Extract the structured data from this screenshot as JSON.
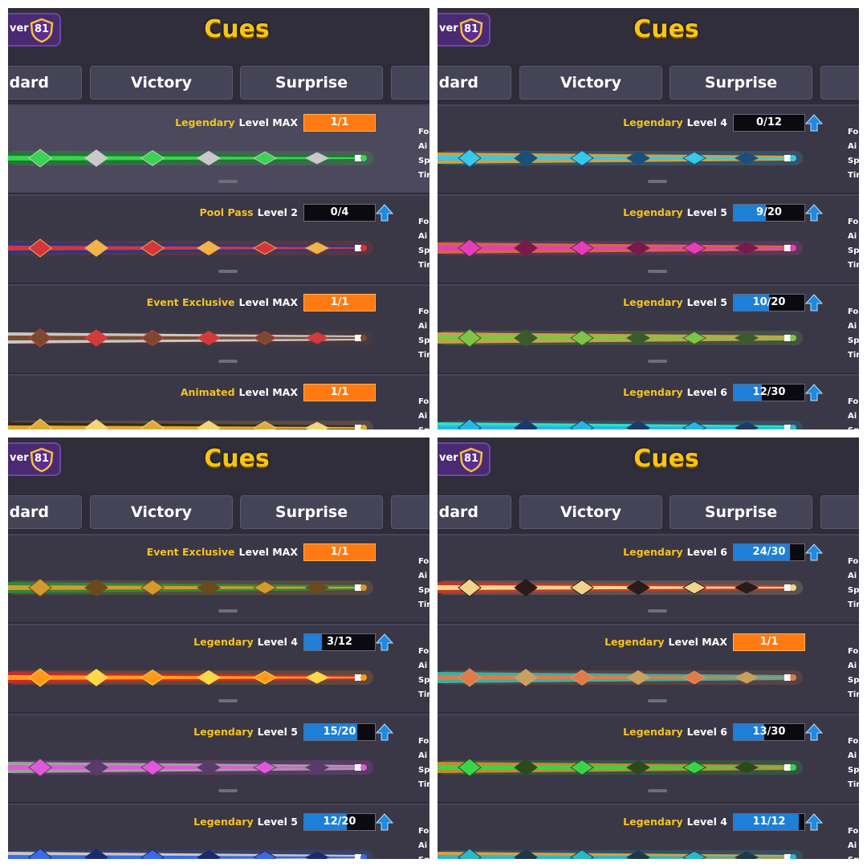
{
  "header": {
    "title": "Cues",
    "profile_label": "ver",
    "level_badge": "81"
  },
  "tabs": [
    "dard",
    "Victory",
    "Surprise"
  ],
  "stat_labels": [
    "Fo",
    "Ai",
    "Sp",
    "Tir"
  ],
  "colors": {
    "rarity": "#f5c320",
    "max_bar": "#ff7a12",
    "progress_fill": "#1e7fd8",
    "background": "#2e2c38"
  },
  "panels": [
    {
      "cards": [
        {
          "rarity": "Legendary",
          "level": "Level MAX",
          "progress": "1/1",
          "max": true,
          "fraction": 1,
          "selected": true,
          "cue_colors": [
            "#39d451",
            "#1a7d2c",
            "#c9c9c9"
          ],
          "cue_icon": "ring-cue-icon"
        },
        {
          "rarity": "Pool Pass",
          "level": "Level 2",
          "progress": "0/4",
          "max": false,
          "fraction": 0,
          "cue_colors": [
            "#d4363a",
            "#273a86",
            "#f2b34a"
          ],
          "cue_icon": "flame-cue-icon"
        },
        {
          "rarity": "Event Exclusive",
          "level": "Level MAX",
          "progress": "1/1",
          "max": true,
          "fraction": 1,
          "cue_colors": [
            "#7a4a2d",
            "#c8c8c8",
            "#d33a3a"
          ],
          "cue_icon": "tribal-cue-icon"
        },
        {
          "rarity": "Animated",
          "level": "Level MAX",
          "progress": "1/1",
          "max": true,
          "fraction": 1,
          "cue_colors": [
            "#e1a937",
            "#3a2a10",
            "#f4d67a"
          ],
          "cue_icon": "gold-cue-icon"
        }
      ]
    },
    {
      "cards": [
        {
          "rarity": "Legendary",
          "level": "Level 4",
          "progress": "0/12",
          "max": false,
          "fraction": 0,
          "cue_colors": [
            "#38c8e8",
            "#d5a13a",
            "#1a4f7a"
          ],
          "cue_icon": "crystal-cue-icon"
        },
        {
          "rarity": "Legendary",
          "level": "Level 5",
          "progress": "9/20",
          "max": false,
          "fraction": 0.45,
          "cue_colors": [
            "#e23fb8",
            "#d46a3a",
            "#7a1a4a"
          ],
          "cue_icon": "magenta-cue-icon"
        },
        {
          "rarity": "Legendary",
          "level": "Level 5",
          "progress": "10/20",
          "max": false,
          "fraction": 0.5,
          "cue_colors": [
            "#7fc545",
            "#c9a04a",
            "#3a5a2a"
          ],
          "cue_icon": "jade-cue-icon"
        },
        {
          "rarity": "Legendary",
          "level": "Level 6",
          "progress": "12/30",
          "max": false,
          "fraction": 0.4,
          "cue_colors": [
            "#27b8e0",
            "#31e0c0",
            "#1a3a6a"
          ],
          "cue_icon": "wave-cue-icon"
        }
      ]
    },
    {
      "cards": [
        {
          "rarity": "Event Exclusive",
          "level": "Level MAX",
          "progress": "1/1",
          "max": true,
          "fraction": 1,
          "cue_colors": [
            "#d39a2e",
            "#2a8a3a",
            "#6a4a1a"
          ],
          "cue_icon": "ornate-cue-icon"
        },
        {
          "rarity": "Legendary",
          "level": "Level 4",
          "progress": "3/12",
          "max": false,
          "fraction": 0.25,
          "cue_colors": [
            "#ff9a1a",
            "#c92a2a",
            "#ffd84a"
          ],
          "cue_icon": "fire-cue-icon"
        },
        {
          "rarity": "Legendary",
          "level": "Level 5",
          "progress": "15/20",
          "max": false,
          "fraction": 0.75,
          "cue_colors": [
            "#e05ad8",
            "#a0a0a0",
            "#5a3a6a"
          ],
          "cue_icon": "violet-cue-icon"
        },
        {
          "rarity": "Legendary",
          "level": "Level 5",
          "progress": "12/20",
          "max": false,
          "fraction": 0.6,
          "cue_colors": [
            "#3a6ae8",
            "#c8c8c8",
            "#1a2a6a"
          ],
          "cue_icon": "lightning-cue-icon"
        }
      ]
    },
    {
      "cards": [
        {
          "rarity": "Legendary",
          "level": "Level 6",
          "progress": "24/30",
          "max": false,
          "fraction": 0.8,
          "cue_colors": [
            "#f2d58a",
            "#c23a2a",
            "#2a1a1a"
          ],
          "cue_icon": "royal-cue-icon"
        },
        {
          "rarity": "Legendary",
          "level": "Level MAX",
          "progress": "1/1",
          "max": true,
          "fraction": 1,
          "cue_colors": [
            "#e07a4a",
            "#3ab0a0",
            "#c8a060"
          ],
          "cue_icon": "jeweled-cue-icon"
        },
        {
          "rarity": "Legendary",
          "level": "Level 6",
          "progress": "13/30",
          "max": false,
          "fraction": 0.43,
          "cue_colors": [
            "#3ad44a",
            "#c88a2a",
            "#2a4a1a"
          ],
          "cue_icon": "leaf-cue-icon"
        },
        {
          "rarity": "Legendary",
          "level": "Level 4",
          "progress": "11/12",
          "max": false,
          "fraction": 0.92,
          "cue_colors": [
            "#2ab8c8",
            "#d8a040",
            "#1a3a4a"
          ],
          "cue_icon": "teal-cue-icon"
        }
      ]
    }
  ]
}
